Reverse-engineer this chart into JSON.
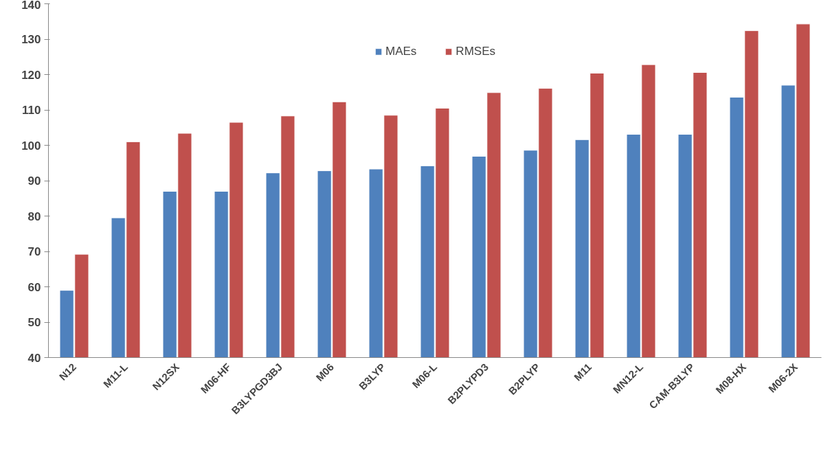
{
  "chart_data": {
    "type": "bar",
    "categories": [
      "N12",
      "M11-L",
      "N12SX",
      "M06-HF",
      "B3LYPGD3BJ",
      "M06",
      "B3LYP",
      "M06-L",
      "B2PLYPD3",
      "B2PLYP",
      "M11",
      "MN12-L",
      "CAM-B3LYP",
      "M08-HX",
      "M06-2X"
    ],
    "series": [
      {
        "name": "MAEs",
        "color": "#4f81bd",
        "values": [
          59.0,
          79.5,
          87.0,
          87.0,
          92.2,
          92.8,
          93.3,
          94.2,
          96.9,
          98.6,
          101.6,
          103.1,
          103.1,
          113.6,
          117.0
        ]
      },
      {
        "name": "RMSEs",
        "color": "#c0504d",
        "values": [
          69.2,
          101.0,
          103.4,
          106.5,
          108.3,
          112.3,
          108.5,
          110.5,
          114.9,
          116.1,
          120.4,
          122.8,
          120.6,
          132.4,
          134.3
        ]
      }
    ],
    "ylim": [
      40,
      140
    ],
    "yticks": [
      40,
      50,
      60,
      70,
      80,
      90,
      100,
      110,
      120,
      130,
      140
    ],
    "grid": false,
    "legend": "top"
  }
}
